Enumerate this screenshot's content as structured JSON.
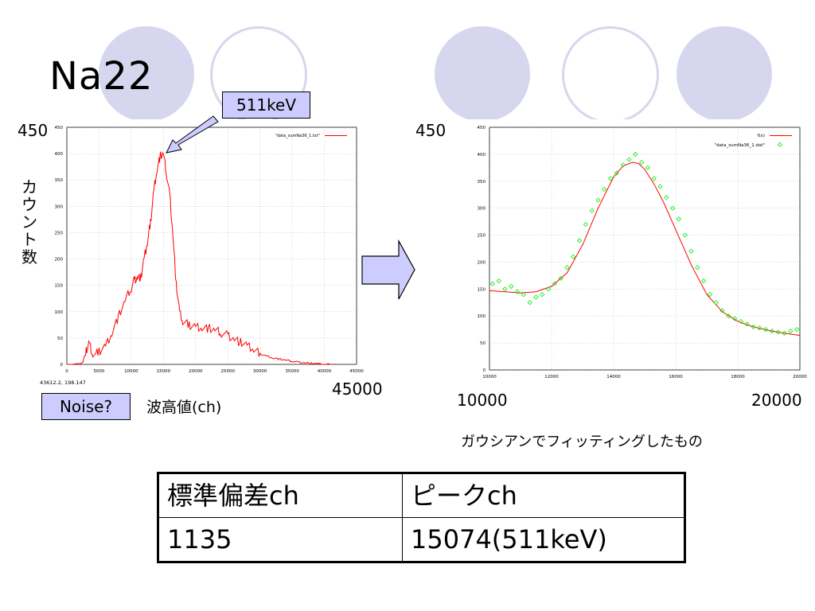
{
  "slide": {
    "title": "Na22",
    "peak_callout": "511keV",
    "noise_label": "Noise?",
    "ylabel": "カウント数",
    "xlabel": "波高値(ch)",
    "fit_caption": "ガウシアンでフィッティングしたもの",
    "left_ymax_label": "450",
    "left_xmax_label": "45000",
    "right_ymax_label": "450",
    "right_xmin_label": "10000",
    "right_xmax_label": "20000"
  },
  "table": {
    "header": [
      "標準偏差ch",
      "ピークch"
    ],
    "row": [
      "1135",
      "15074(511keV)"
    ]
  },
  "colors": {
    "circle_fill": "#d6d6ee",
    "callout_fill": "#ccccff",
    "data_line": "#ff0000",
    "fit_points": "#00ee00"
  },
  "chart_data": [
    {
      "type": "line",
      "legend_position": "top-right",
      "grid": true,
      "coord_readout": "43612.2, 198.147",
      "xlim": [
        0,
        45000
      ],
      "ylim": [
        0,
        450
      ],
      "xticks": [
        0,
        5000,
        10000,
        15000,
        20000,
        25000,
        30000,
        35000,
        40000,
        45000
      ],
      "yticks": [
        0,
        50,
        100,
        150,
        200,
        250,
        300,
        350,
        400,
        450
      ],
      "series": [
        {
          "name": "\"data_sumNa36_1.txt\"",
          "x": [
            0,
            2000,
            2500,
            3000,
            3500,
            4000,
            5000,
            6000,
            7000,
            8000,
            9000,
            10000,
            10500,
            11000,
            11500,
            12000,
            12500,
            13000,
            13500,
            14000,
            14500,
            15000,
            15500,
            16000,
            16500,
            17000,
            17500,
            18000,
            19000,
            20000,
            21000,
            22000,
            23000,
            24000,
            25000,
            26000,
            27000,
            28000,
            29000,
            30000,
            31000,
            32000,
            33000,
            34000,
            35000,
            36000,
            37000,
            38000,
            39000,
            40000,
            41000
          ],
          "y": [
            0,
            0,
            5,
            25,
            40,
            15,
            25,
            35,
            60,
            90,
            120,
            145,
            160,
            165,
            165,
            200,
            230,
            270,
            330,
            370,
            395,
            400,
            360,
            320,
            240,
            150,
            100,
            80,
            75,
            72,
            70,
            68,
            65,
            60,
            55,
            48,
            42,
            35,
            28,
            20,
            16,
            12,
            10,
            8,
            6,
            4,
            3,
            2,
            1,
            0,
            0
          ]
        }
      ]
    },
    {
      "type": "scatter",
      "legend_position": "top-right",
      "grid": true,
      "xlim": [
        10000,
        20000
      ],
      "ylim": [
        0,
        450
      ],
      "xticks": [
        10000,
        12000,
        14000,
        16000,
        18000,
        20000
      ],
      "yticks": [
        0,
        50,
        100,
        150,
        200,
        250,
        300,
        350,
        400,
        450
      ],
      "series": [
        {
          "name": "f(x)",
          "style": "line",
          "x": [
            10000,
            10500,
            11000,
            11500,
            12000,
            12500,
            13000,
            13500,
            14000,
            14300,
            14600,
            14800,
            15000,
            15300,
            15600,
            16000,
            16500,
            17000,
            17500,
            18000,
            18500,
            19000,
            19500,
            20000
          ],
          "y": [
            147,
            145,
            143,
            145,
            155,
            180,
            232,
            300,
            358,
            378,
            385,
            383,
            372,
            345,
            312,
            260,
            195,
            140,
            108,
            90,
            80,
            73,
            68,
            64
          ]
        },
        {
          "name": "\"data_sumNa36_1.dat\"",
          "style": "points",
          "x": [
            10100,
            10300,
            10500,
            10700,
            10900,
            11100,
            11300,
            11500,
            11700,
            11900,
            12100,
            12300,
            12500,
            12700,
            12900,
            13100,
            13300,
            13500,
            13700,
            13900,
            14100,
            14300,
            14500,
            14700,
            14900,
            15100,
            15300,
            15500,
            15700,
            15900,
            16100,
            16300,
            16500,
            16700,
            16900,
            17100,
            17300,
            17500,
            17700,
            17900,
            18100,
            18300,
            18500,
            18700,
            18900,
            19100,
            19300,
            19500,
            19700,
            19900
          ],
          "y": [
            160,
            165,
            150,
            155,
            145,
            140,
            125,
            135,
            140,
            150,
            160,
            170,
            190,
            210,
            240,
            270,
            295,
            315,
            335,
            355,
            365,
            380,
            390,
            400,
            385,
            375,
            355,
            340,
            320,
            300,
            280,
            250,
            220,
            190,
            165,
            140,
            125,
            110,
            100,
            95,
            90,
            85,
            80,
            78,
            75,
            72,
            70,
            68,
            72,
            75
          ]
        }
      ]
    }
  ]
}
